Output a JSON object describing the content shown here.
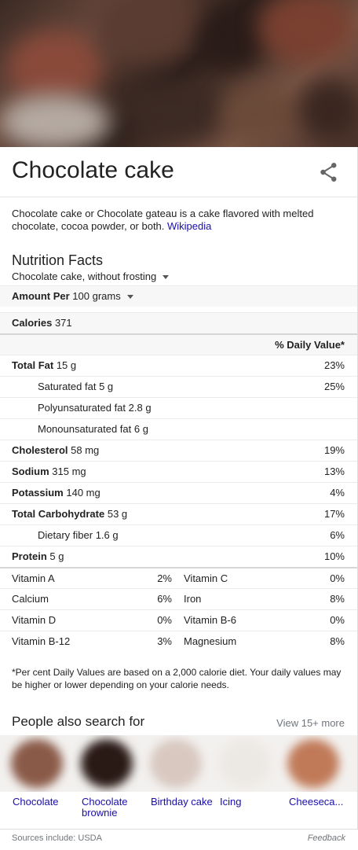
{
  "header": {
    "title": "Chocolate cake",
    "share_icon": "share-icon"
  },
  "description": {
    "text": "Chocolate cake or Chocolate gateau is a cake flavored with melted chocolate, cocoa powder, or both. ",
    "link": "Wikipedia"
  },
  "nutrition": {
    "title": "Nutrition Facts",
    "variant": "Chocolate cake, without frosting",
    "amount_per_label": "Amount Per",
    "amount_per_value": "100 grams",
    "calories_label": "Calories",
    "calories_value": "371",
    "daily_value_header": "% Daily Value*",
    "rows": [
      {
        "label": "Total Fat",
        "value": "15 g",
        "pct": "23%"
      },
      {
        "label": "Saturated fat",
        "value": "5 g",
        "pct": "25%"
      },
      {
        "label": "Polyunsaturated fat",
        "value": "2.8 g",
        "pct": ""
      },
      {
        "label": "Monounsaturated fat",
        "value": "6 g",
        "pct": ""
      },
      {
        "label": "Cholesterol",
        "value": "58 mg",
        "pct": "19%"
      },
      {
        "label": "Sodium",
        "value": "315 mg",
        "pct": "13%"
      },
      {
        "label": "Potassium",
        "value": "140 mg",
        "pct": "4%"
      },
      {
        "label": "Total Carbohydrate",
        "value": "53 g",
        "pct": "17%"
      },
      {
        "label": "Dietary fiber",
        "value": "1.6 g",
        "pct": "6%"
      },
      {
        "label": "Protein",
        "value": "5 g",
        "pct": "10%"
      }
    ],
    "vitamins": [
      {
        "a": "Vitamin A",
        "ap": "2%",
        "b": "Vitamin C",
        "bp": "0%"
      },
      {
        "a": "Calcium",
        "ap": "6%",
        "b": "Iron",
        "bp": "8%"
      },
      {
        "a": "Vitamin D",
        "ap": "0%",
        "b": "Vitamin B-6",
        "bp": "0%"
      },
      {
        "a": "Vitamin B-12",
        "ap": "3%",
        "b": "Magnesium",
        "bp": "8%"
      }
    ],
    "footnote": "*Per cent Daily Values are based on a 2,000 calorie diet. Your daily values may be higher or lower depending on your calorie needs."
  },
  "people_also_search": {
    "title": "People also search for",
    "more": "View 15+ more",
    "items": [
      {
        "label": "Chocolate"
      },
      {
        "label": "Chocolate brownie"
      },
      {
        "label": "Birthday cake"
      },
      {
        "label": "Icing"
      },
      {
        "label": "Cheeseca..."
      }
    ]
  },
  "footer": {
    "sources": "Sources include: USDA",
    "feedback": "Feedback"
  }
}
